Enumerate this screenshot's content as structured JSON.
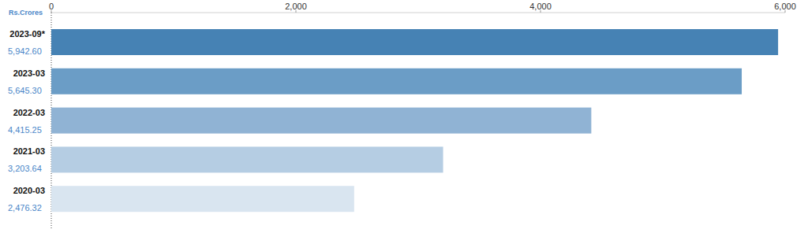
{
  "chart_data": {
    "type": "bar",
    "orientation": "horizontal",
    "xlabel": "Rs.Crores",
    "categories": [
      "2023-09*",
      "2023-03",
      "2022-03",
      "2021-03",
      "2020-03"
    ],
    "values": [
      5942.6,
      5645.3,
      4415.25,
      3203.64,
      2476.32
    ],
    "value_labels": [
      "5,942.60",
      "5,645.30",
      "4,415.25",
      "3,203.64",
      "2,476.32"
    ],
    "colors": [
      "#4682b4",
      "#6b9dc6",
      "#90b3d4",
      "#b5cde3",
      "#d9e5f0"
    ],
    "data_labels": true,
    "xlim": [
      0,
      6000
    ],
    "xticks": [
      0,
      {
        "value": 2000,
        "label": "2,000"
      },
      {
        "value": 4000,
        "label": "4,000"
      },
      {
        "value": 6000,
        "label": "6,000"
      }
    ],
    "grid": false
  }
}
